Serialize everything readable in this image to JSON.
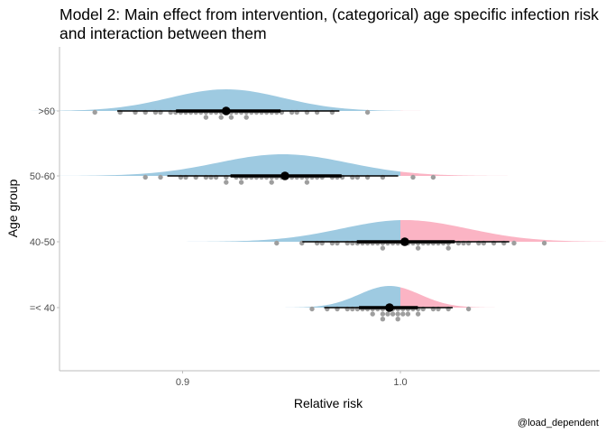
{
  "chart_data": {
    "type": "halfeye-dotplot",
    "title_lines": [
      "Model 2: Main effect from intervention, (categorical) age specific infection risk",
      "and interaction between them"
    ],
    "xlabel": "Relative risk",
    "ylabel": "Age group",
    "caption": "@load_dependent",
    "xlim": [
      0.8435,
      1.0915
    ],
    "x_ticks": [
      0.9,
      1.0
    ],
    "x_tick_labels": [
      "0.9",
      "1.0"
    ],
    "reference_value": 1.0,
    "colors": {
      "below_reference": "#9ecae1",
      "above_reference": "#fbb4c4",
      "dots": "#9e9e9e",
      "interval": "#000000"
    },
    "grid": false,
    "categories": [
      ">60",
      "50-60",
      "40-50",
      "=< 40"
    ],
    "series": [
      {
        "group": ">60",
        "mean": 0.92,
        "sd": 0.026,
        "point": 0.92,
        "interval_66": [
          0.897,
          0.945
        ],
        "interval_95": [
          0.87,
          0.972
        ],
        "dots": [
          0.859,
          0.872,
          0.879,
          0.884,
          0.888,
          0.891,
          0.894,
          0.897,
          0.899,
          0.902,
          0.904,
          0.906,
          0.908,
          0.91,
          0.911,
          0.913,
          0.915,
          0.917,
          0.918,
          0.92,
          0.922,
          0.923,
          0.925,
          0.927,
          0.929,
          0.93,
          0.932,
          0.934,
          0.936,
          0.938,
          0.941,
          0.943,
          0.946,
          0.949,
          0.953,
          0.957,
          0.962,
          0.969,
          0.986
        ]
      },
      {
        "group": "50-60",
        "mean": 0.946,
        "sd": 0.03,
        "point": 0.947,
        "interval_66": [
          0.922,
          0.973
        ],
        "interval_95": [
          0.893,
          0.999
        ],
        "dots": [
          0.882,
          0.891,
          0.898,
          0.902,
          0.906,
          0.91,
          0.913,
          0.916,
          0.919,
          0.921,
          0.924,
          0.926,
          0.928,
          0.93,
          0.932,
          0.934,
          0.936,
          0.938,
          0.94,
          0.942,
          0.944,
          0.946,
          0.948,
          0.95,
          0.952,
          0.954,
          0.956,
          0.958,
          0.96,
          0.962,
          0.965,
          0.968,
          0.971,
          0.974,
          0.977,
          0.981,
          0.986,
          0.992,
          1.006,
          1.016
        ]
      },
      {
        "group": "40-50",
        "mean": 1.002,
        "sd": 0.029,
        "point": 1.002,
        "interval_66": [
          0.98,
          1.025
        ],
        "interval_95": [
          0.955,
          1.05
        ],
        "dots": [
          0.943,
          0.954,
          0.961,
          0.965,
          0.969,
          0.972,
          0.975,
          0.978,
          0.981,
          0.983,
          0.985,
          0.987,
          0.989,
          0.991,
          0.993,
          0.995,
          0.997,
          0.999,
          1.001,
          1.003,
          1.005,
          1.007,
          1.009,
          1.011,
          1.013,
          1.015,
          1.017,
          1.019,
          1.021,
          1.023,
          1.026,
          1.029,
          1.032,
          1.035,
          1.038,
          1.042,
          1.047,
          1.053,
          1.066
        ]
      },
      {
        "group": "=< 40",
        "mean": 0.995,
        "sd": 0.014,
        "point": 0.995,
        "interval_66": [
          0.981,
          1.008
        ],
        "interval_95": [
          0.965,
          1.024
        ],
        "dots": [
          0.96,
          0.966,
          0.971,
          0.975,
          0.978,
          0.981,
          0.983,
          0.985,
          0.987,
          0.988,
          0.99,
          0.991,
          0.992,
          0.993,
          0.994,
          0.995,
          0.996,
          0.997,
          0.998,
          0.999,
          1.0,
          1.001,
          1.002,
          1.003,
          1.004,
          1.005,
          1.007,
          1.009,
          1.011,
          1.014,
          1.018,
          1.022,
          1.031
        ]
      }
    ]
  }
}
